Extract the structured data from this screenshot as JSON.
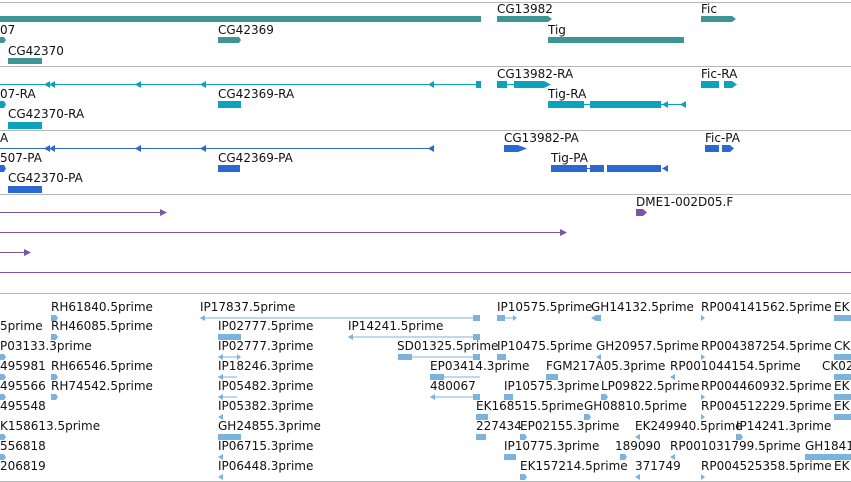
{
  "colors": {
    "gene": "#3d9595",
    "mrna": "#0aa3bb",
    "cds": "#2a6ad0",
    "clone": "#7a55a6",
    "est": "#7cb3dc",
    "separator": "#b7b7b7"
  },
  "tracks": {
    "gene": {
      "labels": [
        "CG13982",
        "Fic",
        "07",
        "CG42369",
        "Tig",
        "CG42370"
      ]
    },
    "mrna": {
      "labels": [
        "CG13982-RA",
        "Fic-RA",
        "07-RA",
        "CG42369-RA",
        "Tig-RA",
        "CG42370-RA"
      ]
    },
    "cds": {
      "labels": [
        "A",
        "CG13982-PA",
        "Fic-PA",
        "507-PA",
        "CG42369-PA",
        "Tig-PA",
        "CG42370-PA"
      ]
    },
    "clone": {
      "labels": [
        "DME1-002D05.F"
      ]
    },
    "est": {
      "labels": [
        "RH61840.5prime",
        "IP17837.5prime",
        "IP10575.5prime",
        "GH14132.5prime",
        "RP004141562.5prime",
        "EK",
        "5prime",
        "RH46085.5prime",
        "IP02777.5prime",
        "IP14241.5prime",
        "P03133.3prime",
        "IP02777.3prime",
        "SD01325.5prime",
        "IP10475.5prime",
        "GH20957.5prime",
        "RP004387254.5prime",
        "CK",
        "495981",
        "RH66546.5prime",
        "IP18246.3prime",
        "EP03414.3prime",
        "FGM217A05.3prime",
        "RP001044154.5prime",
        "CK02",
        "495566",
        "RH74542.5prime",
        "IP05482.3prime",
        "480067",
        "IP10575.3prime",
        "LP09822.5prime",
        "RP004460932.5prime",
        "EK",
        "495548",
        "IP05382.3prime",
        "EK168515.5prime",
        "GH08810.5prime",
        "RP004512229.5prime",
        "EK",
        "K158613.5prime",
        "GH24855.3prime",
        "227434",
        "EP02155.3prime",
        "EK249940.5prime",
        "IP14241.3prime",
        "556818",
        "IP06715.3prime",
        "IP10775.3prime",
        "189090",
        "RP001031799.5prime",
        "GH1841",
        "206819",
        "IP06448.3prime",
        "EK157214.5prime",
        "371749",
        "RP004525358.5prime",
        "EK"
      ]
    }
  }
}
